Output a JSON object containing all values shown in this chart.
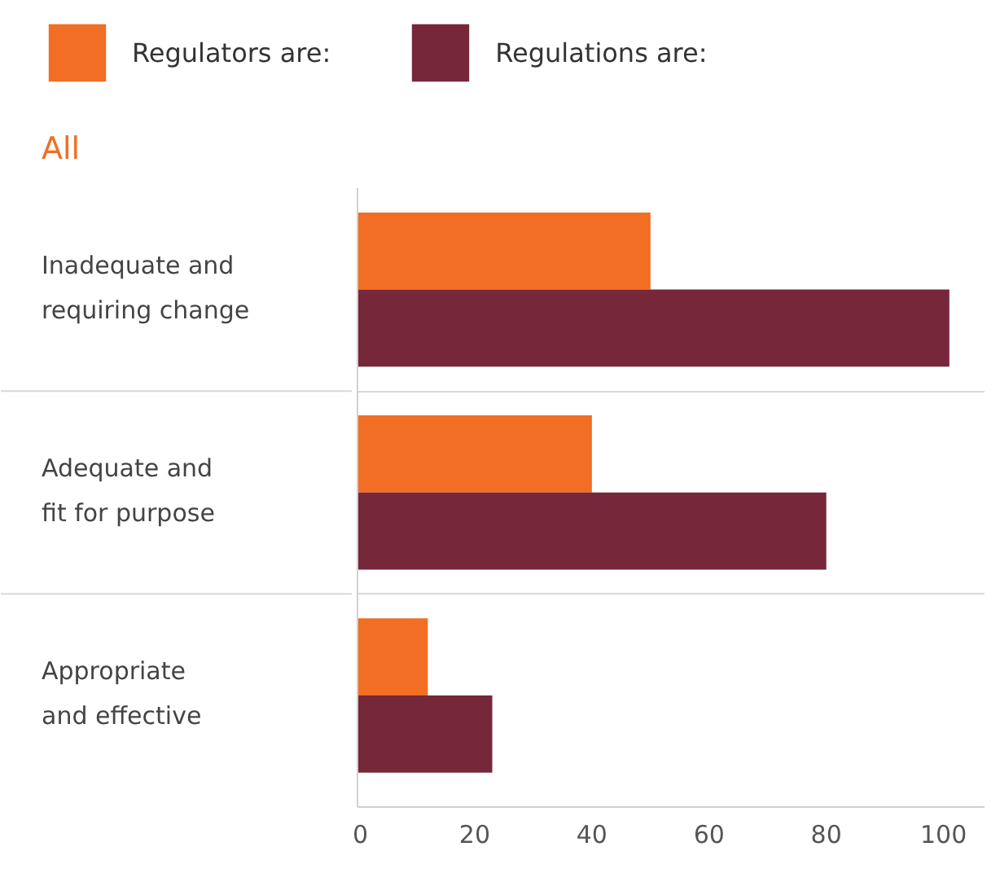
{
  "chart_data": {
    "type": "bar",
    "orientation": "horizontal",
    "title": "All",
    "categories": [
      "Inadequate and requiring change",
      "Adequate and fit for purpose",
      "Appropriate and effective"
    ],
    "series": [
      {
        "name": "Regulators are:",
        "color": "#f26e25",
        "values": [
          50,
          40,
          12
        ]
      },
      {
        "name": "Regulations are:",
        "color": "#76273a",
        "values": [
          101,
          80,
          23
        ]
      }
    ],
    "xlim": [
      0,
      107
    ],
    "xticks": [
      0,
      20,
      40,
      60,
      80,
      100
    ],
    "grid": "y",
    "legend": "top"
  }
}
